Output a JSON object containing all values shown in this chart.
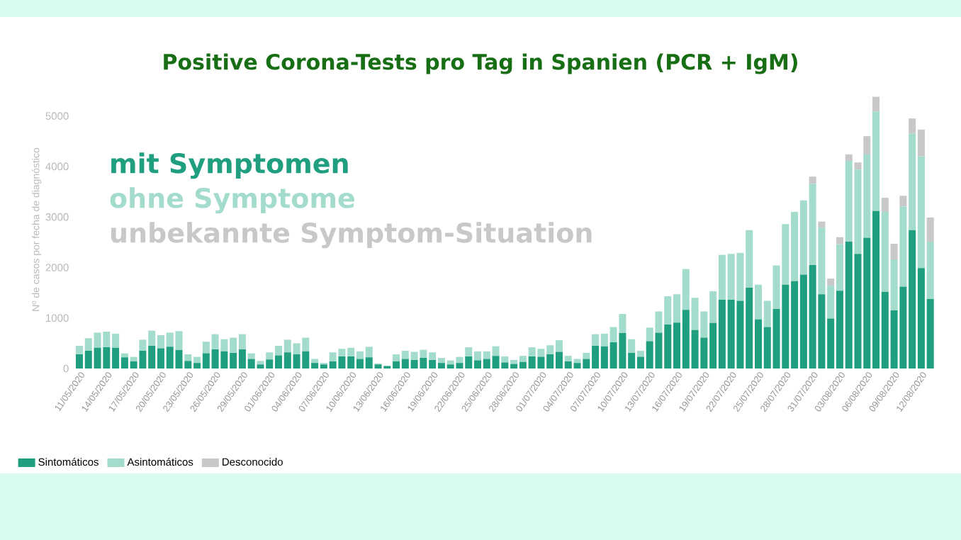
{
  "chart_data": {
    "type": "bar",
    "stacked": true,
    "title": "Positive Corona-Tests pro Tag in Spanien (PCR + IgM)",
    "ylabel": "Nº de casos por fecha de diagnóstico",
    "annotations": [
      "mit Symptomen",
      "ohne Symptome",
      "unbekannte Symptom-Situation"
    ],
    "categories": [
      "11/05/2020",
      null,
      null,
      "14/05/2020",
      null,
      null,
      "17/05/2020",
      null,
      null,
      "20/05/2020",
      null,
      null,
      "23/05/2020",
      null,
      null,
      "26/05/2020",
      null,
      null,
      "29/05/2020",
      null,
      null,
      "01/06/2020",
      null,
      null,
      "04/06/2020",
      null,
      null,
      "07/06/2020",
      null,
      null,
      "10/06/2020",
      null,
      null,
      "13/06/2020",
      null,
      null,
      "16/06/2020",
      null,
      null,
      "19/06/2020",
      null,
      null,
      "22/06/2020",
      null,
      null,
      "25/06/2020",
      null,
      null,
      "28/06/2020",
      null,
      null,
      "01/07/2020",
      null,
      null,
      "04/07/2020",
      null,
      null,
      "07/07/2020",
      null,
      null,
      "10/07/2020",
      null,
      null,
      "13/07/2020",
      null,
      null,
      "16/07/2020",
      null,
      null,
      "19/07/2020",
      null,
      null,
      "22/07/2020",
      null,
      null,
      "25/07/2020",
      null,
      null,
      "28/07/2020",
      null,
      null,
      "31/07/2020",
      null,
      null,
      "03/08/2020",
      null,
      null,
      "06/08/2020",
      null,
      null,
      "09/08/2020",
      null,
      null,
      "12/08/2020",
      null
    ],
    "series": [
      {
        "name": "Sintomáticos",
        "color": "#1f9e80",
        "values": [
          280,
          350,
          410,
          420,
          410,
          220,
          140,
          350,
          450,
          400,
          430,
          370,
          150,
          110,
          300,
          380,
          340,
          310,
          380,
          190,
          80,
          180,
          260,
          320,
          280,
          340,
          110,
          80,
          140,
          240,
          240,
          190,
          220,
          80,
          50,
          140,
          190,
          170,
          210,
          170,
          110,
          80,
          110,
          240,
          160,
          190,
          250,
          120,
          90,
          130,
          240,
          230,
          280,
          330,
          140,
          110,
          190,
          450,
          440,
          520,
          700,
          310,
          230,
          540,
          710,
          870,
          910,
          1160,
          760,
          610,
          900,
          1360,
          1360,
          1340,
          1600,
          970,
          820,
          1180,
          1660,
          1730,
          1860,
          2050,
          1470,
          990,
          1540,
          2510,
          2270,
          2590,
          3120,
          1520,
          1150,
          1620,
          2740,
          1990,
          1380
        ]
      },
      {
        "name": "Asintomáticos",
        "color": "#a3dccd",
        "values": [
          170,
          250,
          300,
          310,
          280,
          80,
          90,
          220,
          300,
          260,
          280,
          370,
          130,
          120,
          230,
          300,
          240,
          300,
          300,
          110,
          70,
          140,
          190,
          250,
          220,
          270,
          80,
          30,
          180,
          150,
          170,
          150,
          210,
          20,
          null,
          140,
          160,
          160,
          160,
          150,
          100,
          80,
          120,
          180,
          180,
          150,
          190,
          120,
          80,
          120,
          180,
          160,
          180,
          230,
          110,
          80,
          120,
          230,
          250,
          300,
          380,
          270,
          120,
          270,
          420,
          560,
          560,
          810,
          640,
          520,
          630,
          890,
          910,
          950,
          1140,
          690,
          520,
          860,
          1200,
          1370,
          1470,
          1610,
          1320,
          650,
          920,
          1600,
          1670,
          1650,
          1970,
          1580,
          1010,
          1590,
          1910,
          2210,
          1130
        ]
      },
      {
        "name": "Desconocido",
        "color": "#c8c8c8",
        "values": [
          0,
          0,
          0,
          0,
          0,
          0,
          0,
          0,
          0,
          0,
          0,
          0,
          0,
          0,
          0,
          0,
          0,
          0,
          0,
          0,
          0,
          0,
          0,
          0,
          0,
          0,
          0,
          0,
          0,
          0,
          0,
          0,
          0,
          0,
          0,
          0,
          0,
          0,
          0,
          0,
          0,
          0,
          0,
          0,
          0,
          0,
          0,
          0,
          0,
          0,
          0,
          0,
          0,
          0,
          0,
          0,
          0,
          0,
          0,
          0,
          0,
          0,
          0,
          0,
          0,
          0,
          0,
          0,
          0,
          0,
          0,
          0,
          0,
          0,
          0,
          0,
          0,
          0,
          0,
          0,
          0,
          140,
          120,
          140,
          140,
          130,
          140,
          360,
          290,
          280,
          310,
          210,
          300,
          530,
          480
        ]
      }
    ],
    "ylim": [
      0,
      5500
    ],
    "yticks": [
      0,
      1000,
      2000,
      3000,
      4000,
      5000
    ],
    "grid": false,
    "legend": "bottom left"
  }
}
